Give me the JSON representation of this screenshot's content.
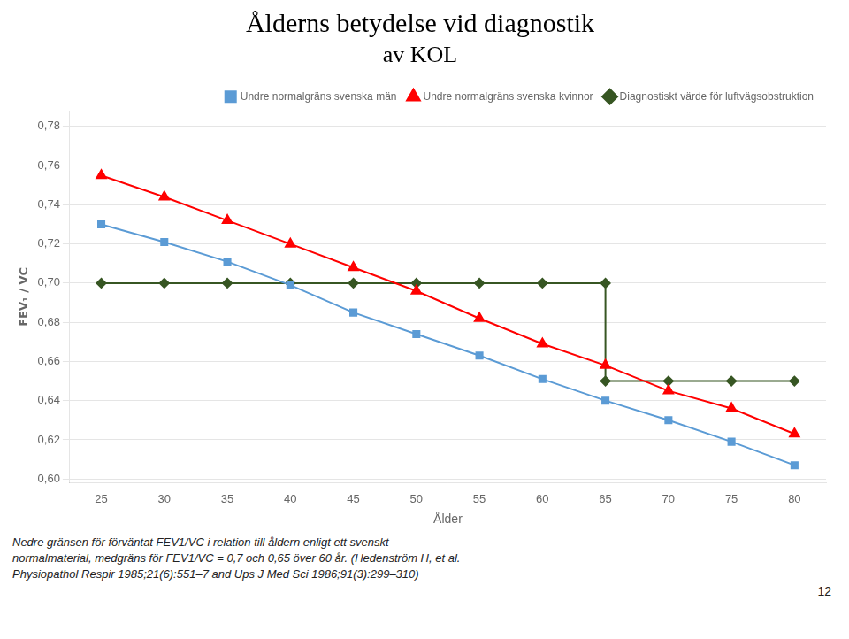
{
  "chart_data": {
    "type": "line",
    "title": "Ålderns betydelse vid diagnostik",
    "subtitle": "av KOL",
    "xlabel": "Ålder",
    "ylabel": "FEV₁ / VC",
    "series": [
      {
        "name": "Undre normalgräns svenska män",
        "color": "#5B9BD5",
        "marker": "square",
        "x": [
          25,
          30,
          35,
          40,
          45,
          50,
          55,
          60,
          65,
          70,
          75,
          80
        ],
        "values": [
          0.73,
          0.721,
          0.711,
          0.699,
          0.685,
          0.674,
          0.663,
          0.651,
          0.64,
          0.63,
          0.619,
          0.607
        ]
      },
      {
        "name": "Undre normalgräns svenska kvinnor",
        "color": "#FF0000",
        "marker": "triangle",
        "x": [
          25,
          30,
          35,
          40,
          45,
          50,
          55,
          60,
          65,
          70,
          75,
          80
        ],
        "values": [
          0.755,
          0.744,
          0.732,
          0.72,
          0.708,
          0.696,
          0.682,
          0.669,
          0.658,
          0.645,
          0.636,
          0.623
        ]
      },
      {
        "name": "Diagnostiskt värde för luftvägsobstruktion",
        "color": "#375623",
        "marker": "diamond",
        "x": [
          25,
          30,
          35,
          40,
          45,
          50,
          55,
          60,
          65,
          65,
          70,
          75,
          80
        ],
        "values": [
          0.7,
          0.7,
          0.7,
          0.7,
          0.7,
          0.7,
          0.7,
          0.7,
          0.7,
          0.65,
          0.65,
          0.65,
          0.65
        ]
      }
    ],
    "xlim": [
      22.5,
      82.5
    ],
    "xticks": [
      25,
      30,
      35,
      40,
      45,
      50,
      55,
      60,
      65,
      70,
      75,
      80
    ],
    "ylim": [
      0.598,
      0.788
    ],
    "yticks": [
      {
        "value": 0.6,
        "label": "0,60"
      },
      {
        "value": 0.62,
        "label": "0,62"
      },
      {
        "value": 0.64,
        "label": "0,64"
      },
      {
        "value": 0.66,
        "label": "0,66"
      },
      {
        "value": 0.68,
        "label": "0,68"
      },
      {
        "value": 0.7,
        "label": "0,70"
      },
      {
        "value": 0.72,
        "label": "0,72"
      },
      {
        "value": 0.74,
        "label": "0,74"
      },
      {
        "value": 0.76,
        "label": "0,76"
      },
      {
        "value": 0.78,
        "label": "0,78"
      }
    ],
    "grid": true,
    "legend": "upper right",
    "annotations": [
      "Nedre gränsen för förväntat FEV1/VC i relation till åldern enligt ett svenskt",
      "normalmaterial, medgräns för FEV1/VC = 0,7 och 0,65 över 60 år. (Hedenström H, et al.",
      "Physiopathol Respir 1985;21(6):551–7 and Ups J Med Sci 1986;91(3):299–310)",
      "12"
    ]
  }
}
